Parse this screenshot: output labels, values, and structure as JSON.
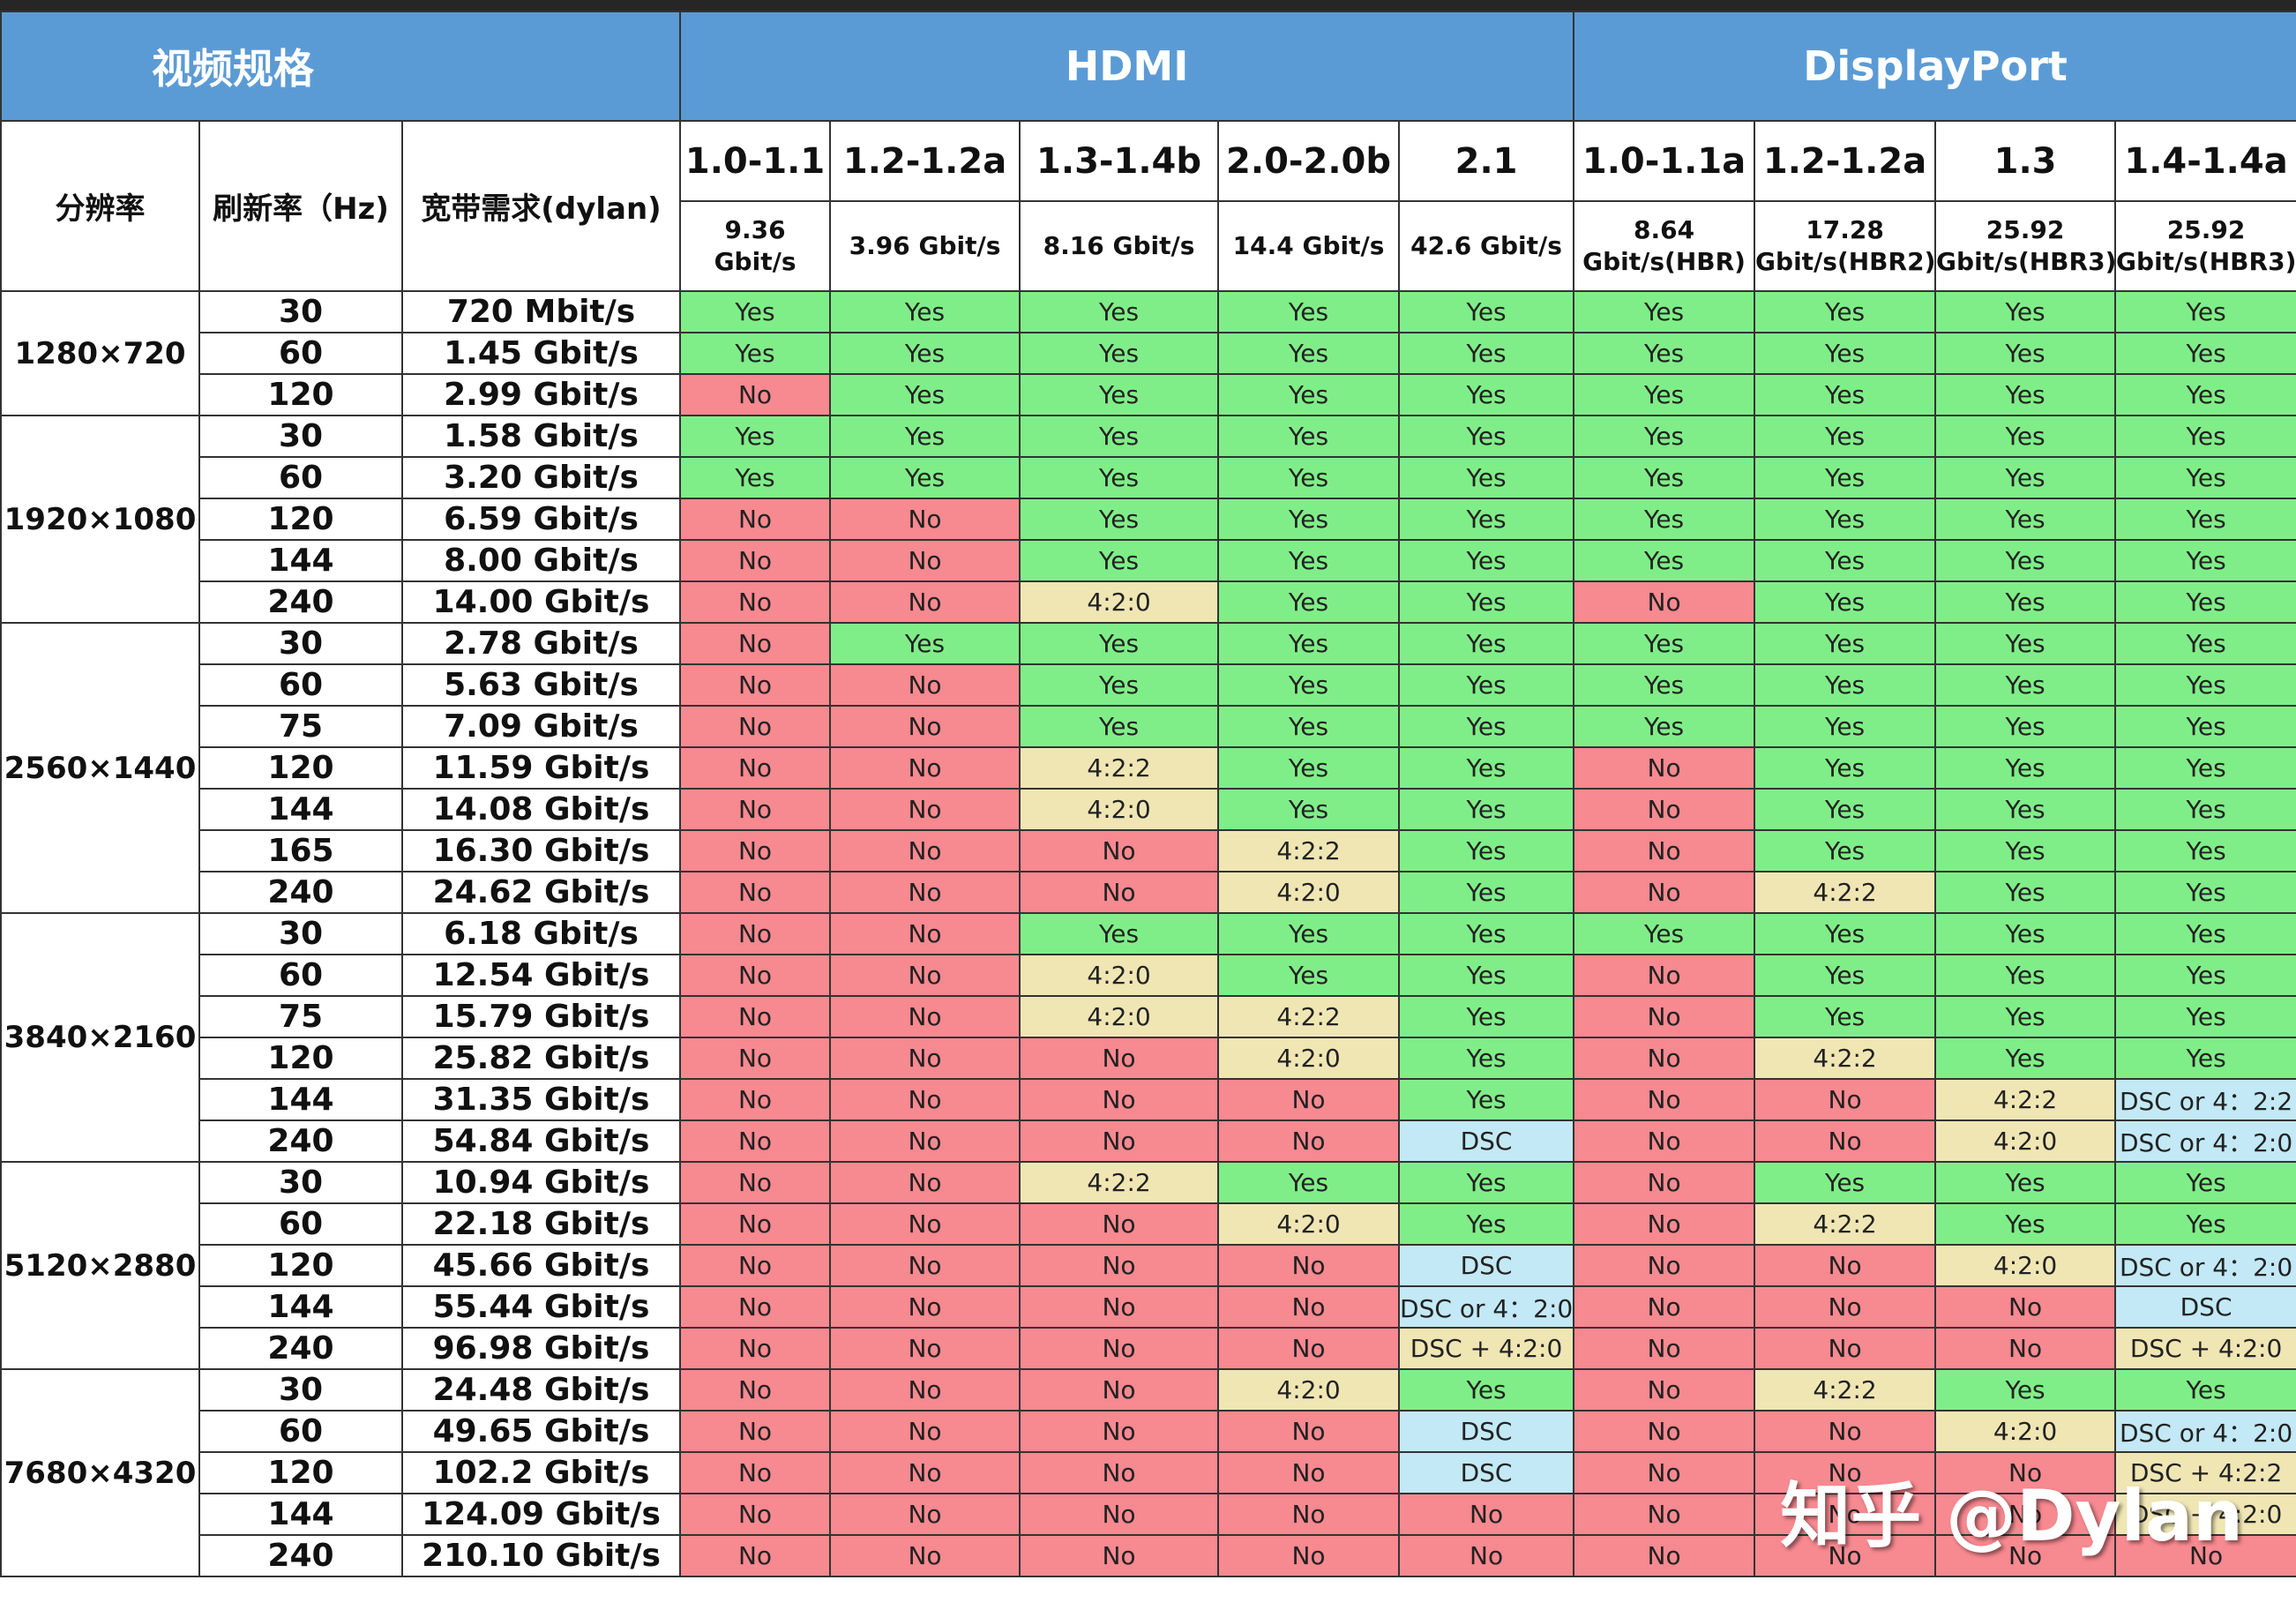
{
  "header": {
    "title": "视频规格",
    "hdmi_label": "HDMI",
    "displayport_label": "DisplayPort"
  },
  "columns": {
    "resolution": "分辨率",
    "refresh_rate": "刷新率（Hz)",
    "bandwidth": "宽带需求(dylan)"
  },
  "hdmi_versions": [
    {
      "version": "1.0-1.1",
      "bandwidth": "9.36 Gbit/s"
    },
    {
      "version": "1.2-1.2a",
      "bandwidth": "3.96 Gbit/s"
    },
    {
      "version": "1.3-1.4b",
      "bandwidth": "8.16 Gbit/s"
    },
    {
      "version": "2.0-2.0b",
      "bandwidth": "14.4 Gbit/s"
    },
    {
      "version": "2.1",
      "bandwidth": "42.6 Gbit/s"
    }
  ],
  "dp_versions": [
    {
      "version": "1.0-1.1a",
      "bandwidth_line1": "8.64",
      "bandwidth_line2": "Gbit/s(HBR)"
    },
    {
      "version": "1.2-1.2a",
      "bandwidth_line1": "17.28",
      "bandwidth_line2": "Gbit/s(HBR2)"
    },
    {
      "version": "1.3",
      "bandwidth_line1": "25.92",
      "bandwidth_line2": "Gbit/s(HBR3)"
    },
    {
      "version": "1.4-1.4a",
      "bandwidth_line1": "25.92",
      "bandwidth_line2": "Gbit/s(HBR3)"
    }
  ],
  "colors": {
    "header_blue": "#5b9bd5",
    "yes_green": "#80ee88",
    "no_red": "#f78990",
    "subsampling_yellow": "#f0e6b4",
    "dsc_blue": "#c2e9f5"
  },
  "groups": [
    {
      "resolution": "1280×720",
      "rows": [
        {
          "hz": "30",
          "bw": "720 Mbit/s",
          "cells": [
            "Yes",
            "Yes",
            "Yes",
            "Yes",
            "Yes",
            "Yes",
            "Yes",
            "Yes",
            "Yes"
          ]
        },
        {
          "hz": "60",
          "bw": "1.45 Gbit/s",
          "cells": [
            "Yes",
            "Yes",
            "Yes",
            "Yes",
            "Yes",
            "Yes",
            "Yes",
            "Yes",
            "Yes"
          ]
        },
        {
          "hz": "120",
          "bw": "2.99 Gbit/s",
          "cells": [
            "No",
            "Yes",
            "Yes",
            "Yes",
            "Yes",
            "Yes",
            "Yes",
            "Yes",
            "Yes"
          ]
        }
      ]
    },
    {
      "resolution": "1920×1080",
      "rows": [
        {
          "hz": "30",
          "bw": "1.58 Gbit/s",
          "cells": [
            "Yes",
            "Yes",
            "Yes",
            "Yes",
            "Yes",
            "Yes",
            "Yes",
            "Yes",
            "Yes"
          ]
        },
        {
          "hz": "60",
          "bw": "3.20 Gbit/s",
          "cells": [
            "Yes",
            "Yes",
            "Yes",
            "Yes",
            "Yes",
            "Yes",
            "Yes",
            "Yes",
            "Yes"
          ]
        },
        {
          "hz": "120",
          "bw": "6.59 Gbit/s",
          "cells": [
            "No",
            "No",
            "Yes",
            "Yes",
            "Yes",
            "Yes",
            "Yes",
            "Yes",
            "Yes"
          ]
        },
        {
          "hz": "144",
          "bw": "8.00 Gbit/s",
          "cells": [
            "No",
            "No",
            "Yes",
            "Yes",
            "Yes",
            "Yes",
            "Yes",
            "Yes",
            "Yes"
          ]
        },
        {
          "hz": "240",
          "bw": "14.00 Gbit/s",
          "cells": [
            "No",
            "No",
            "4:2:0",
            "Yes",
            "Yes",
            "No",
            "Yes",
            "Yes",
            "Yes"
          ]
        }
      ]
    },
    {
      "resolution": "2560×1440",
      "rows": [
        {
          "hz": "30",
          "bw": "2.78 Gbit/s",
          "cells": [
            "No",
            "Yes",
            "Yes",
            "Yes",
            "Yes",
            "Yes",
            "Yes",
            "Yes",
            "Yes"
          ]
        },
        {
          "hz": "60",
          "bw": "5.63 Gbit/s",
          "cells": [
            "No",
            "No",
            "Yes",
            "Yes",
            "Yes",
            "Yes",
            "Yes",
            "Yes",
            "Yes"
          ]
        },
        {
          "hz": "75",
          "bw": "7.09 Gbit/s",
          "cells": [
            "No",
            "No",
            "Yes",
            "Yes",
            "Yes",
            "Yes",
            "Yes",
            "Yes",
            "Yes"
          ]
        },
        {
          "hz": "120",
          "bw": "11.59 Gbit/s",
          "cells": [
            "No",
            "No",
            "4:2:2",
            "Yes",
            "Yes",
            "No",
            "Yes",
            "Yes",
            "Yes"
          ]
        },
        {
          "hz": "144",
          "bw": "14.08 Gbit/s",
          "cells": [
            "No",
            "No",
            "4:2:0",
            "Yes",
            "Yes",
            "No",
            "Yes",
            "Yes",
            "Yes"
          ]
        },
        {
          "hz": "165",
          "bw": "16.30 Gbit/s",
          "cells": [
            "No",
            "No",
            "No",
            "4:2:2",
            "Yes",
            "No",
            "Yes",
            "Yes",
            "Yes"
          ]
        },
        {
          "hz": "240",
          "bw": "24.62 Gbit/s",
          "cells": [
            "No",
            "No",
            "No",
            "4:2:0",
            "Yes",
            "No",
            "4:2:2",
            "Yes",
            "Yes"
          ]
        }
      ]
    },
    {
      "resolution": "3840×2160",
      "rows": [
        {
          "hz": "30",
          "bw": "6.18 Gbit/s",
          "cells": [
            "No",
            "No",
            "Yes",
            "Yes",
            "Yes",
            "Yes",
            "Yes",
            "Yes",
            "Yes"
          ]
        },
        {
          "hz": "60",
          "bw": "12.54 Gbit/s",
          "cells": [
            "No",
            "No",
            "4:2:0",
            "Yes",
            "Yes",
            "No",
            "Yes",
            "Yes",
            "Yes"
          ]
        },
        {
          "hz": "75",
          "bw": "15.79 Gbit/s",
          "cells": [
            "No",
            "No",
            "4:2:0",
            "4:2:2",
            "Yes",
            "No",
            "Yes",
            "Yes",
            "Yes"
          ]
        },
        {
          "hz": "120",
          "bw": "25.82 Gbit/s",
          "cells": [
            "No",
            "No",
            "No",
            "4:2:0",
            "Yes",
            "No",
            "4:2:2",
            "Yes",
            "Yes"
          ]
        },
        {
          "hz": "144",
          "bw": "31.35 Gbit/s",
          "cells": [
            "No",
            "No",
            "No",
            "No",
            "Yes",
            "No",
            "No",
            "4:2:2",
            "DSC or 4：2:2"
          ]
        },
        {
          "hz": "240",
          "bw": "54.84 Gbit/s",
          "cells": [
            "No",
            "No",
            "No",
            "No",
            "DSC",
            "No",
            "No",
            "4:2:0",
            "DSC or 4：2:0"
          ]
        }
      ]
    },
    {
      "resolution": "5120×2880",
      "rows": [
        {
          "hz": "30",
          "bw": "10.94 Gbit/s",
          "cells": [
            "No",
            "No",
            "4:2:2",
            "Yes",
            "Yes",
            "No",
            "Yes",
            "Yes",
            "Yes"
          ]
        },
        {
          "hz": "60",
          "bw": "22.18 Gbit/s",
          "cells": [
            "No",
            "No",
            "No",
            "4:2:0",
            "Yes",
            "No",
            "4:2:2",
            "Yes",
            "Yes"
          ]
        },
        {
          "hz": "120",
          "bw": "45.66 Gbit/s",
          "cells": [
            "No",
            "No",
            "No",
            "No",
            "DSC",
            "No",
            "No",
            "4:2:0",
            "DSC or 4：2:0"
          ]
        },
        {
          "hz": "144",
          "bw": "55.44 Gbit/s",
          "cells": [
            "No",
            "No",
            "No",
            "No",
            "DSC or 4：2:0",
            "No",
            "No",
            "No",
            "DSC"
          ]
        },
        {
          "hz": "240",
          "bw": "96.98 Gbit/s",
          "cells": [
            "No",
            "No",
            "No",
            "No",
            "DSC + 4:2:0",
            "No",
            "No",
            "No",
            "DSC + 4:2:0"
          ]
        }
      ]
    },
    {
      "resolution": "7680×4320",
      "rows": [
        {
          "hz": "30",
          "bw": "24.48 Gbit/s",
          "cells": [
            "No",
            "No",
            "No",
            "4:2:0",
            "Yes",
            "No",
            "4:2:2",
            "Yes",
            "Yes"
          ]
        },
        {
          "hz": "60",
          "bw": "49.65 Gbit/s",
          "cells": [
            "No",
            "No",
            "No",
            "No",
            "DSC",
            "No",
            "No",
            "4:2:0",
            "DSC or 4：2:0"
          ]
        },
        {
          "hz": "120",
          "bw": "102.2 Gbit/s",
          "cells": [
            "No",
            "No",
            "No",
            "No",
            "DSC",
            "No",
            "No",
            "No",
            "DSC + 4:2:2"
          ]
        },
        {
          "hz": "144",
          "bw": "124.09 Gbit/s",
          "cells": [
            "No",
            "No",
            "No",
            "No",
            "No",
            "No",
            "No",
            "No",
            "DSC + 4:2:0"
          ]
        },
        {
          "hz": "240",
          "bw": "210.10 Gbit/s",
          "cells": [
            "No",
            "No",
            "No",
            "No",
            "No",
            "No",
            "No",
            "No",
            "No"
          ]
        }
      ]
    }
  ],
  "watermark": "知乎 @Dylan"
}
